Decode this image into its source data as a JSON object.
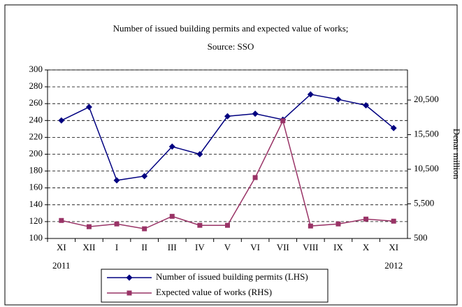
{
  "chart_data": {
    "type": "line",
    "title": "Number of issued building permits and expected value of works;",
    "subtitle": "Source: SSO",
    "y2_label": "Denar million",
    "categories": [
      "XI",
      "XII",
      "I",
      "II",
      "III",
      "IV",
      "V",
      "VI",
      "VII",
      "VIII",
      "IX",
      "X",
      "XI"
    ],
    "years": [
      "2011",
      null,
      null,
      null,
      null,
      null,
      null,
      null,
      null,
      null,
      null,
      null,
      "2012"
    ],
    "series": [
      {
        "name": "Number of issued building permits (LHS)",
        "color": "#000080",
        "marker": "diamond",
        "values": [
          240,
          256,
          169,
          174,
          209,
          200,
          245,
          248,
          241,
          271,
          265,
          258,
          231
        ]
      },
      {
        "name": "Expected value of works (RHS)",
        "color": "#993366",
        "marker": "square",
        "axis": "y2",
        "values": [
          3100,
          2200,
          2600,
          1900,
          3700,
          2400,
          2400,
          9300,
          17500,
          2300,
          2600,
          3300,
          3000
        ]
      }
    ],
    "ylim": [
      100,
      300
    ],
    "yticks": [
      100,
      120,
      140,
      160,
      180,
      200,
      220,
      240,
      260,
      280,
      300
    ],
    "y2lim": [
      500,
      24850
    ],
    "y2ticks": [
      500,
      {
        "value": 5500,
        "label": "5,500"
      },
      {
        "value": 10500,
        "label": "10,500"
      },
      {
        "value": 15500,
        "label": "15,500"
      },
      {
        "value": 20500,
        "label": "20,500"
      }
    ],
    "grid": true,
    "legend": "bottom"
  }
}
